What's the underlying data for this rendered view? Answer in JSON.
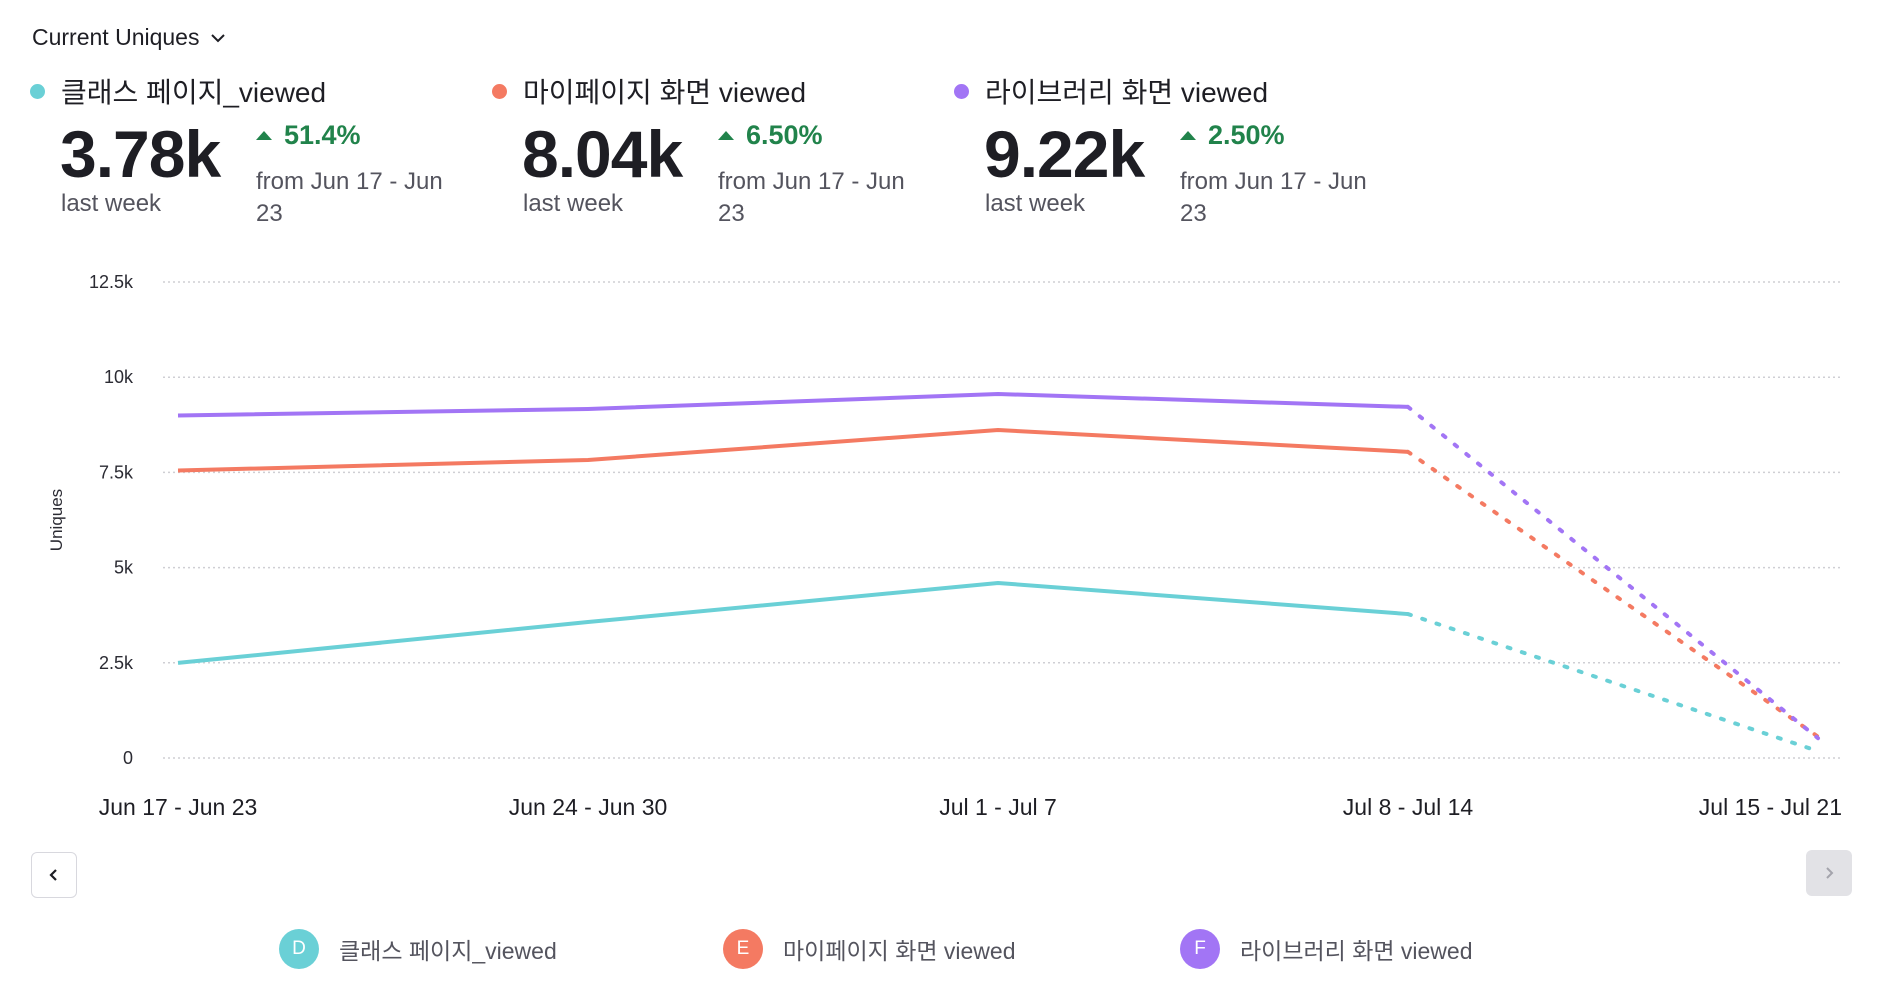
{
  "header": {
    "metric_selector_label": "Current Uniques"
  },
  "kpis": [
    {
      "series_name": "클래스 페이지_viewed",
      "color": "#6ad0d6",
      "value": "3.78k",
      "period_label": "last week",
      "delta": "51.4%",
      "delta_direction": "up",
      "comparison": "from Jun 17 - Jun 23"
    },
    {
      "series_name": "마이페이지 화면 viewed",
      "color": "#f47a62",
      "value": "8.04k",
      "period_label": "last week",
      "delta": "6.50%",
      "delta_direction": "up",
      "comparison": "from Jun 17 - Jun 23"
    },
    {
      "series_name": "라이브러리 화면 viewed",
      "color": "#a275f5",
      "value": "9.22k",
      "period_label": "last week",
      "delta": "2.50%",
      "delta_direction": "up",
      "comparison": "from Jun 17 - Jun 23"
    }
  ],
  "positive_color": "#21834b",
  "chart_data": {
    "type": "line",
    "title": "",
    "xlabel": "",
    "ylabel": "Uniques",
    "ylim": [
      0,
      12500
    ],
    "yticks": [
      0,
      2500,
      5000,
      7500,
      10000,
      12500
    ],
    "ytick_labels": [
      "0",
      "2.5k",
      "5k",
      "7.5k",
      "10k",
      "12.5k"
    ],
    "grid": true,
    "categories": [
      "Jun 17 - Jun 23",
      "Jun 24 - Jun 30",
      "Jul 1 - Jul 7",
      "Jul 8 - Jul 14",
      "Jul 15 - Jul 21"
    ],
    "incomplete_from_index": 3,
    "series": [
      {
        "name": "클래스 페이지_viewed",
        "badge": "D",
        "color": "#6ad0d6",
        "values": [
          2497,
          3571,
          4596,
          3780,
          180
        ]
      },
      {
        "name": "마이페이지 화면 viewed",
        "badge": "E",
        "color": "#f47a62",
        "values": [
          7549,
          7826,
          8613,
          8040,
          560
        ]
      },
      {
        "name": "라이브러리 화면 viewed",
        "badge": "F",
        "color": "#a275f5",
        "values": [
          8995,
          9165,
          9559,
          9220,
          520
        ]
      }
    ],
    "legend_position": "bottom"
  },
  "navigation": {
    "prev_icon": "chevron-left-icon",
    "next_icon": "chevron-right-icon"
  }
}
